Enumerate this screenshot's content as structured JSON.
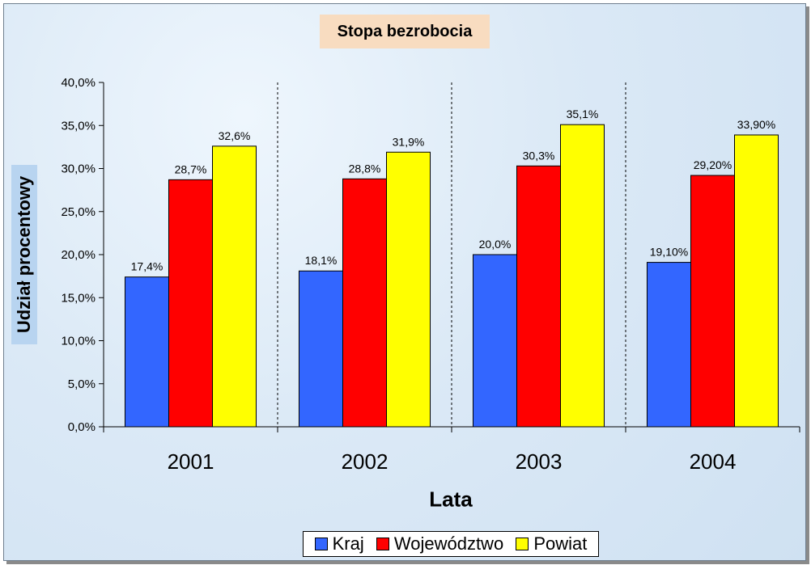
{
  "chart_data": {
    "type": "bar",
    "title": "Stopa bezrobocia",
    "xlabel": "Lata",
    "ylabel": "Udział procentowy",
    "categories": [
      "2001",
      "2002",
      "2003",
      "2004"
    ],
    "ylim": [
      0,
      40
    ],
    "yticks": [
      "0,0%",
      "5,0%",
      "10,0%",
      "15,0%",
      "20,0%",
      "25,0%",
      "30,0%",
      "35,0%",
      "40,0%"
    ],
    "grid": false,
    "legend_position": "bottom",
    "series": [
      {
        "name": "Kraj",
        "color": "#3366ff",
        "values": [
          17.4,
          18.1,
          20.0,
          19.1
        ],
        "labels": [
          "17,4%",
          "18,1%",
          "20,0%",
          "19,10%"
        ]
      },
      {
        "name": "Województwo",
        "color": "#ff0000",
        "values": [
          28.7,
          28.8,
          30.3,
          29.2
        ],
        "labels": [
          "28,7%",
          "28,8%",
          "30,3%",
          "29,20%"
        ]
      },
      {
        "name": "Powiat",
        "color": "#ffff00",
        "values": [
          32.6,
          31.9,
          35.1,
          33.9
        ],
        "labels": [
          "32,6%",
          "31,9%",
          "35,1%",
          "33,90%"
        ]
      }
    ]
  }
}
